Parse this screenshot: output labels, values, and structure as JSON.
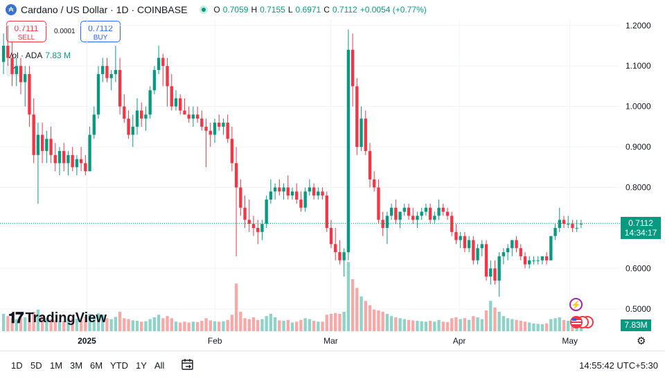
{
  "header": {
    "symbol_title": "Cardano / US Dollar · 1D · COINBASE",
    "open_label": "O",
    "open": "0.7059",
    "high_label": "H",
    "high": "0.7155",
    "low_label": "L",
    "low": "0.6971",
    "close_label": "C",
    "close": "0.7112",
    "change": "+0.0054 (+0.77%)"
  },
  "trade": {
    "sell_price": "0.7111",
    "sell_label": "SELL",
    "spread": "0.0001",
    "buy_price": "0.7112",
    "buy_label": "BUY"
  },
  "volume_legend": {
    "label": "Vol · ADA",
    "value": "7.83 M"
  },
  "price_tag": {
    "price": "0.7112",
    "countdown": "14:34:17"
  },
  "volume_tag": "7.83M",
  "brand": "TradingView",
  "toolbar": {
    "timeframes": [
      "1D",
      "5D",
      "1M",
      "3M",
      "6M",
      "YTD",
      "1Y",
      "All"
    ],
    "clock": "14:55:42 UTC+5:30"
  },
  "colors": {
    "up": "#089981",
    "down": "#f23645",
    "vol_up": "#8fd3c8",
    "vol_down": "#f7a9a7",
    "accent": "#2962ff"
  },
  "chart_data": {
    "type": "candlestick",
    "y_axis_ticks": [
      "1.2000",
      "1.1000",
      "1.0000",
      "0.9000",
      "0.8000",
      "0.6000",
      "0.5000"
    ],
    "ylim": [
      0.445,
      1.215
    ],
    "x_axis_ticks": [
      "2025",
      "Feb",
      "Mar",
      "Apr",
      "May"
    ],
    "last_price": 0.7112,
    "candles": [
      [
        1.11,
        1.18,
        1.08,
        1.15,
        40
      ],
      [
        1.15,
        1.2,
        1.1,
        1.12,
        35
      ],
      [
        1.12,
        1.16,
        1.05,
        1.08,
        30
      ],
      [
        1.08,
        1.12,
        1.05,
        1.1,
        28
      ],
      [
        1.1,
        1.12,
        1.03,
        1.06,
        30
      ],
      [
        1.06,
        1.1,
        1.0,
        1.08,
        32
      ],
      [
        1.08,
        1.1,
        0.95,
        0.98,
        38
      ],
      [
        0.98,
        1.02,
        0.86,
        0.88,
        45
      ],
      [
        0.88,
        0.96,
        0.76,
        0.93,
        50
      ],
      [
        0.93,
        0.96,
        0.86,
        0.89,
        35
      ],
      [
        0.89,
        0.94,
        0.86,
        0.92,
        30
      ],
      [
        0.92,
        0.95,
        0.86,
        0.88,
        28
      ],
      [
        0.88,
        0.91,
        0.84,
        0.86,
        26
      ],
      [
        0.86,
        0.9,
        0.83,
        0.89,
        25
      ],
      [
        0.89,
        0.91,
        0.84,
        0.86,
        24
      ],
      [
        0.86,
        0.89,
        0.83,
        0.88,
        28
      ],
      [
        0.88,
        0.9,
        0.84,
        0.85,
        30
      ],
      [
        0.85,
        0.88,
        0.83,
        0.87,
        29
      ],
      [
        0.87,
        0.9,
        0.84,
        0.86,
        26
      ],
      [
        0.86,
        0.88,
        0.83,
        0.84,
        34
      ],
      [
        0.84,
        0.95,
        0.84,
        0.93,
        40
      ],
      [
        0.93,
        1.0,
        0.92,
        0.98,
        35
      ],
      [
        0.98,
        1.1,
        0.97,
        1.08,
        42
      ],
      [
        1.08,
        1.12,
        1.06,
        1.1,
        38
      ],
      [
        1.1,
        1.12,
        1.06,
        1.07,
        30
      ],
      [
        1.07,
        1.09,
        1.04,
        1.08,
        28
      ],
      [
        1.08,
        1.15,
        1.06,
        1.09,
        33
      ],
      [
        1.09,
        1.12,
        0.98,
        1.0,
        45
      ],
      [
        1.0,
        1.03,
        0.96,
        0.97,
        30
      ],
      [
        0.97,
        0.99,
        0.92,
        0.93,
        28
      ],
      [
        0.93,
        0.98,
        0.9,
        0.95,
        25
      ],
      [
        0.95,
        1.02,
        0.93,
        0.99,
        24
      ],
      [
        0.99,
        1.01,
        0.95,
        0.97,
        22
      ],
      [
        0.97,
        1.0,
        0.94,
        0.98,
        23
      ],
      [
        0.98,
        1.05,
        0.97,
        1.04,
        28
      ],
      [
        1.04,
        1.1,
        1.03,
        1.09,
        32
      ],
      [
        1.09,
        1.15,
        1.08,
        1.12,
        38
      ],
      [
        1.12,
        1.13,
        1.05,
        1.1,
        30
      ],
      [
        1.1,
        1.12,
        1.0,
        1.05,
        35
      ],
      [
        1.05,
        1.08,
        0.99,
        1.0,
        30
      ],
      [
        1.0,
        1.04,
        0.99,
        1.02,
        22
      ],
      [
        1.02,
        1.03,
        0.98,
        0.99,
        20
      ],
      [
        0.99,
        1.02,
        0.98,
        0.98,
        22
      ],
      [
        0.98,
        1.0,
        0.96,
        0.97,
        20
      ],
      [
        0.97,
        1.0,
        0.95,
        0.98,
        22
      ],
      [
        0.98,
        1.0,
        0.96,
        0.97,
        21
      ],
      [
        0.97,
        0.99,
        0.94,
        0.95,
        24
      ],
      [
        0.95,
        0.97,
        0.85,
        0.94,
        30
      ],
      [
        0.94,
        0.96,
        0.9,
        0.93,
        25
      ],
      [
        0.93,
        0.97,
        0.91,
        0.96,
        23
      ],
      [
        0.96,
        0.98,
        0.94,
        0.95,
        22
      ],
      [
        0.95,
        0.97,
        0.93,
        0.96,
        23
      ],
      [
        0.96,
        0.98,
        0.91,
        0.92,
        26
      ],
      [
        0.92,
        0.95,
        0.84,
        0.86,
        38
      ],
      [
        0.86,
        0.9,
        0.63,
        0.8,
        110
      ],
      [
        0.8,
        0.82,
        0.73,
        0.75,
        45
      ],
      [
        0.75,
        0.78,
        0.7,
        0.72,
        30
      ],
      [
        0.72,
        0.77,
        0.69,
        0.71,
        28
      ],
      [
        0.71,
        0.73,
        0.68,
        0.7,
        32
      ],
      [
        0.7,
        0.72,
        0.66,
        0.69,
        26
      ],
      [
        0.69,
        0.72,
        0.67,
        0.71,
        28
      ],
      [
        0.71,
        0.78,
        0.7,
        0.77,
        35
      ],
      [
        0.77,
        0.82,
        0.76,
        0.79,
        40
      ],
      [
        0.79,
        0.81,
        0.77,
        0.8,
        32
      ],
      [
        0.8,
        0.82,
        0.78,
        0.79,
        25
      ],
      [
        0.79,
        0.81,
        0.77,
        0.8,
        24
      ],
      [
        0.8,
        0.83,
        0.77,
        0.78,
        26
      ],
      [
        0.78,
        0.8,
        0.77,
        0.79,
        20
      ],
      [
        0.79,
        0.81,
        0.76,
        0.77,
        22
      ],
      [
        0.77,
        0.79,
        0.74,
        0.75,
        26
      ],
      [
        0.75,
        0.8,
        0.74,
        0.79,
        30
      ],
      [
        0.79,
        0.82,
        0.78,
        0.8,
        28
      ],
      [
        0.8,
        0.81,
        0.77,
        0.78,
        24
      ],
      [
        0.78,
        0.8,
        0.77,
        0.79,
        22
      ],
      [
        0.79,
        0.8,
        0.77,
        0.78,
        22
      ],
      [
        0.78,
        0.79,
        0.69,
        0.7,
        38
      ],
      [
        0.7,
        0.72,
        0.65,
        0.66,
        40
      ],
      [
        0.66,
        0.7,
        0.62,
        0.64,
        42
      ],
      [
        0.64,
        0.67,
        0.61,
        0.62,
        40
      ],
      [
        0.62,
        0.65,
        0.58,
        0.64,
        45
      ],
      [
        0.64,
        1.19,
        0.62,
        1.14,
        160
      ],
      [
        1.14,
        1.18,
        1.0,
        1.05,
        120
      ],
      [
        1.05,
        1.07,
        0.88,
        0.9,
        100
      ],
      [
        0.9,
        1.0,
        0.89,
        0.97,
        80
      ],
      [
        0.97,
        0.99,
        0.88,
        0.89,
        70
      ],
      [
        0.89,
        0.91,
        0.8,
        0.82,
        60
      ],
      [
        0.82,
        0.84,
        0.79,
        0.8,
        50
      ],
      [
        0.8,
        0.82,
        0.71,
        0.72,
        48
      ],
      [
        0.72,
        0.74,
        0.68,
        0.7,
        45
      ],
      [
        0.7,
        0.74,
        0.66,
        0.73,
        40
      ],
      [
        0.73,
        0.76,
        0.72,
        0.75,
        35
      ],
      [
        0.75,
        0.77,
        0.71,
        0.72,
        32
      ],
      [
        0.72,
        0.74,
        0.7,
        0.74,
        30
      ],
      [
        0.74,
        0.76,
        0.73,
        0.75,
        28
      ],
      [
        0.75,
        0.76,
        0.72,
        0.73,
        26
      ],
      [
        0.73,
        0.75,
        0.71,
        0.72,
        25
      ],
      [
        0.72,
        0.74,
        0.7,
        0.73,
        24
      ],
      [
        0.73,
        0.75,
        0.72,
        0.74,
        23
      ],
      [
        0.74,
        0.76,
        0.73,
        0.75,
        22
      ],
      [
        0.75,
        0.76,
        0.71,
        0.72,
        24
      ],
      [
        0.72,
        0.74,
        0.71,
        0.73,
        22
      ],
      [
        0.73,
        0.77,
        0.72,
        0.75,
        26
      ],
      [
        0.75,
        0.76,
        0.73,
        0.74,
        22
      ],
      [
        0.74,
        0.75,
        0.72,
        0.73,
        21
      ],
      [
        0.73,
        0.74,
        0.68,
        0.69,
        30
      ],
      [
        0.69,
        0.71,
        0.66,
        0.67,
        32
      ],
      [
        0.67,
        0.69,
        0.65,
        0.68,
        28
      ],
      [
        0.68,
        0.69,
        0.64,
        0.65,
        30
      ],
      [
        0.65,
        0.68,
        0.64,
        0.67,
        26
      ],
      [
        0.67,
        0.68,
        0.61,
        0.62,
        35
      ],
      [
        0.62,
        0.66,
        0.61,
        0.65,
        32
      ],
      [
        0.65,
        0.67,
        0.63,
        0.66,
        28
      ],
      [
        0.66,
        0.67,
        0.57,
        0.58,
        48
      ],
      [
        0.58,
        0.62,
        0.56,
        0.6,
        70
      ],
      [
        0.6,
        0.62,
        0.56,
        0.57,
        55
      ],
      [
        0.57,
        0.64,
        0.53,
        0.63,
        45
      ],
      [
        0.63,
        0.65,
        0.61,
        0.64,
        35
      ],
      [
        0.64,
        0.66,
        0.62,
        0.65,
        30
      ],
      [
        0.65,
        0.67,
        0.63,
        0.67,
        28
      ],
      [
        0.67,
        0.68,
        0.64,
        0.65,
        26
      ],
      [
        0.65,
        0.66,
        0.62,
        0.63,
        24
      ],
      [
        0.63,
        0.64,
        0.6,
        0.61,
        22
      ],
      [
        0.61,
        0.63,
        0.6,
        0.62,
        20
      ],
      [
        0.62,
        0.63,
        0.61,
        0.62,
        18
      ],
      [
        0.62,
        0.63,
        0.61,
        0.62,
        17
      ],
      [
        0.62,
        0.63,
        0.61,
        0.63,
        16
      ],
      [
        0.63,
        0.64,
        0.61,
        0.62,
        18
      ],
      [
        0.62,
        0.68,
        0.62,
        0.68,
        28
      ],
      [
        0.68,
        0.71,
        0.67,
        0.7,
        30
      ],
      [
        0.7,
        0.75,
        0.69,
        0.72,
        32
      ],
      [
        0.72,
        0.73,
        0.7,
        0.71,
        26
      ],
      [
        0.71,
        0.73,
        0.7,
        0.71,
        24
      ],
      [
        0.71,
        0.72,
        0.69,
        0.7,
        22
      ],
      [
        0.7,
        0.72,
        0.69,
        0.7,
        20
      ],
      [
        0.71,
        0.72,
        0.7,
        0.71,
        10
      ]
    ]
  }
}
